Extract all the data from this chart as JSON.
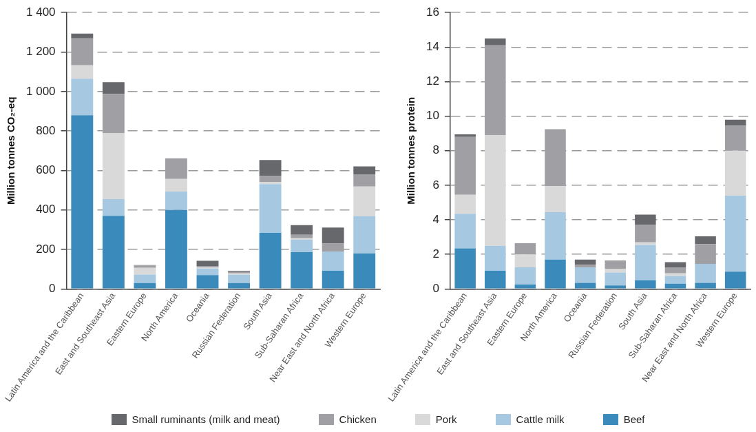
{
  "chart_data": [
    {
      "type": "bar",
      "stacked": true,
      "ylabel": "Million tonnes CO₂-eq",
      "legend": "bottom",
      "grid": "y",
      "categories": [
        "Latin America and the Caribbean",
        "East and Southeast Asia",
        "Eastern Europe",
        "North America",
        "Oceania",
        "Russian Federation",
        "South Asia",
        "Sub-Saharan Africa",
        "Near East and North Africa",
        "Western Europe"
      ],
      "ylim": [
        0,
        1400
      ],
      "yticks": [
        0,
        200,
        400,
        600,
        800,
        {
          "value": 1000,
          "label": "1 000"
        },
        {
          "value": 1200,
          "label": "1 200"
        },
        {
          "value": 1400,
          "label": "1 400"
        }
      ],
      "series": [
        {
          "name": "Beef",
          "color": "#3a8bbb",
          "values": [
            880,
            370,
            30,
            400,
            70,
            30,
            284,
            186,
            92,
            180
          ]
        },
        {
          "name": "Cattle milk",
          "color": "#a6c8e0",
          "values": [
            185,
            85,
            43,
            93,
            33,
            42,
            247,
            64,
            98,
            189
          ]
        },
        {
          "name": "Pork",
          "color": "#d9d9d9",
          "values": [
            68,
            335,
            34,
            64,
            6,
            7,
            11,
            7,
            null,
            150
          ]
        },
        {
          "name": "Chicken",
          "color": "#a0a0a4",
          "values": [
            136,
            198,
            11,
            100,
            7,
            8,
            30,
            17,
            40,
            62
          ]
        },
        {
          "name": "Small ruminants (milk and meat)",
          "color": "#67686c",
          "values": [
            24,
            59,
            3,
            3,
            27,
            5,
            81,
            49,
            81,
            40
          ]
        }
      ]
    },
    {
      "type": "bar",
      "stacked": true,
      "ylabel": "Million tonnes protein",
      "legend": "bottom",
      "grid": "y",
      "categories": [
        "Latin America and the Caribbean",
        "East and Southeast Asia",
        "Eastern Europe",
        "North America",
        "Oceania",
        "Russian Federation",
        "South Asia",
        "Sub-Saharan Africa",
        "Near East and North Africa",
        "Western Europe"
      ],
      "ylim": [
        0,
        16
      ],
      "yticks": [
        0,
        2,
        4,
        6,
        8,
        10,
        12,
        14,
        16
      ],
      "series": [
        {
          "name": "Beef",
          "color": "#3a8bbb",
          "values": [
            2.35,
            1.05,
            0.25,
            1.7,
            0.35,
            0.2,
            0.5,
            0.3,
            0.35,
            1.0
          ]
        },
        {
          "name": "Cattle milk",
          "color": "#a6c8e0",
          "values": [
            2.0,
            1.45,
            1.0,
            2.75,
            0.9,
            0.75,
            2.05,
            0.45,
            1.1,
            4.4
          ]
        },
        {
          "name": "Pork",
          "color": "#d9d9d9",
          "values": [
            1.1,
            6.4,
            0.75,
            1.5,
            null,
            0.2,
            0.15,
            0.15,
            0,
            2.6
          ]
        },
        {
          "name": "Chicken",
          "color": "#a0a0a4",
          "values": [
            3.35,
            5.2,
            0.65,
            3.3,
            0.15,
            0.5,
            1.0,
            0.35,
            1.15,
            1.45
          ]
        },
        {
          "name": "Small ruminants (milk and meat)",
          "color": "#67686c",
          "values": [
            0.15,
            0.4,
            0,
            0,
            0.3,
            0,
            0.6,
            0.3,
            0.45,
            0.35
          ]
        }
      ]
    }
  ]
}
